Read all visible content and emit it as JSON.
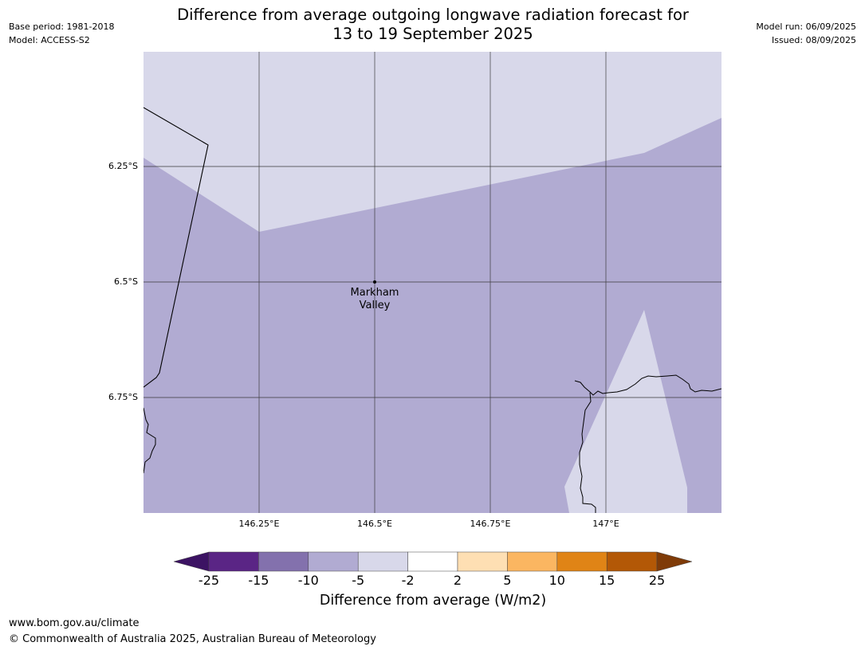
{
  "header": {
    "title": "Difference from average outgoing longwave radiation forecast for\n13 to 19 September 2025",
    "base_period": "Base period: 1981-2018",
    "model": "Model: ACCESS-S2",
    "model_run": "Model run: 06/09/2025",
    "issued": "Issued: 08/09/2025"
  },
  "map": {
    "latitude_labels": [
      "6.25°S",
      "6.5°S",
      "6.75°S"
    ],
    "longitude_labels": [
      "146.25°E",
      "146.5°E",
      "146.75°E",
      "147°E"
    ],
    "place": {
      "name": "Markham\nValley"
    },
    "colors": {
      "background_anomaly": "#b1abd2",
      "lighter_anomaly": "#d8d8ea",
      "grid": "#3a3a3a",
      "coastline": "#000000"
    }
  },
  "colorbar": {
    "title": "Difference from average (W/m2)",
    "ticks": [
      "-25",
      "-15",
      "-10",
      "-5",
      "-2",
      "2",
      "5",
      "10",
      "15",
      "25"
    ],
    "colors": [
      "#3c1363",
      "#5a2585",
      "#8371ad",
      "#b1abd2",
      "#d8d8ea",
      "#ffffff",
      "#fedfb3",
      "#fbb661",
      "#e08416",
      "#b35806",
      "#7f3b08"
    ]
  },
  "footer": {
    "url": "www.bom.gov.au/climate",
    "copyright": "© Commonwealth of Australia 2025, Australian Bureau of Meteorology"
  }
}
